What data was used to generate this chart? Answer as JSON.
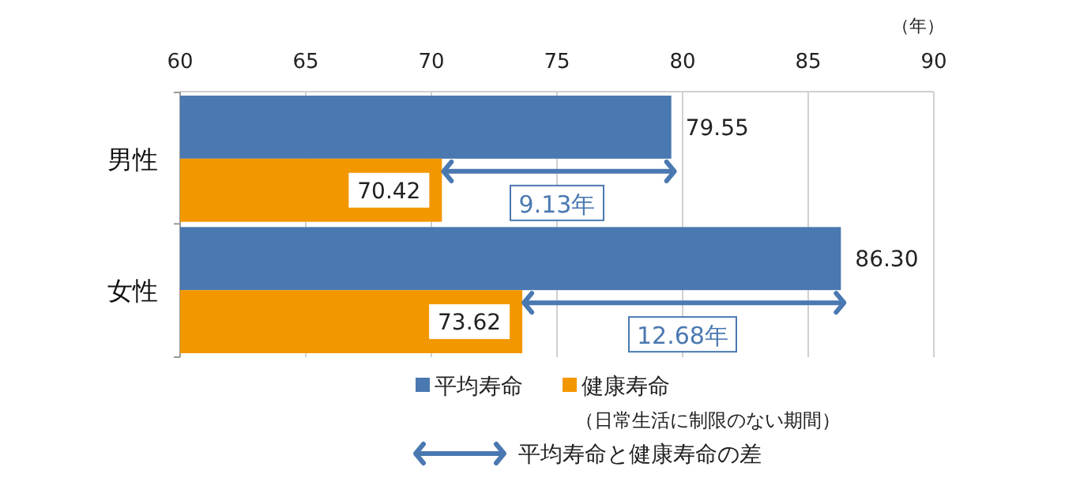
{
  "chart_data": {
    "type": "bar",
    "orientation": "horizontal",
    "xlabel": "（年）",
    "categories": [
      "男性",
      "女性"
    ],
    "series": [
      {
        "name": "平均寿命",
        "color": "#4a78b1",
        "values": [
          79.55,
          86.3
        ],
        "value_labels": [
          "79.55",
          "86.30"
        ]
      },
      {
        "name": "健康寿命",
        "color": "#f39700",
        "values": [
          70.42,
          73.62
        ],
        "value_labels": [
          "70.42",
          "73.62"
        ]
      }
    ],
    "xlim": [
      60,
      90
    ],
    "xticks": [
      60,
      65,
      70,
      75,
      80,
      85,
      90
    ],
    "grid": "x",
    "legend": "bottom",
    "annotations": [
      "（日常生活に制限のない期間）",
      "平均寿命と健康寿命の差",
      {
        "text": "9.13年",
        "x": 75,
        "y": "男性"
      },
      {
        "text": "12.68年",
        "x": 80,
        "y": "女性"
      }
    ]
  }
}
